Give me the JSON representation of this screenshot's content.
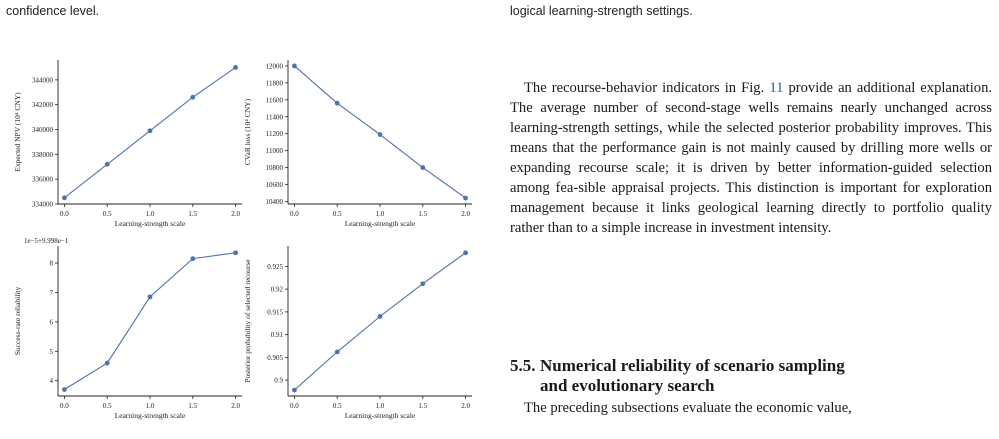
{
  "left_snippet": "confidence level.",
  "right_snippet": "logical learning-strength settings.",
  "paragraph": {
    "before_ref": "The recourse-behavior indicators in Fig.",
    "ref": "11",
    "after_ref": "provide an additional explanation. The average number of second-stage wells remains nearly unchanged across learning-strength settings, while the selected posterior probability improves. This means that the performance gain is not mainly caused by drilling more wells or expanding recourse scale; it is driven by better information-guided selection among fea-sible appraisal projects. This distinction is important for exploration management because it links geological learning directly to portfolio quality rather than to a simple increase in investment intensity."
  },
  "section": {
    "number": "5.5.",
    "title_line1": "Numerical reliability of scenario sampling",
    "title_line2": "and evolutionary search"
  },
  "next_line": "The preceding subsections evaluate the economic value,",
  "colors": {
    "line": "#4c72b0",
    "point": "#4c72b0",
    "text": "#222222"
  },
  "chart_data": [
    {
      "type": "line",
      "x": [
        0.0,
        0.5,
        1.0,
        1.5,
        2.0
      ],
      "values": [
        334500,
        337200,
        339900,
        342600,
        345000
      ],
      "xlabel": "Learning-strength scale",
      "ylabel": "Expected NPV (10⁴ CNY)",
      "xticks": [
        "0.0",
        "0.5",
        "1.0",
        "1.5",
        "2.0"
      ],
      "yticks": [
        334000,
        336000,
        338000,
        340000,
        342000,
        344000
      ],
      "ylim": [
        334000,
        345600
      ],
      "offset_label": ""
    },
    {
      "type": "line",
      "x": [
        0.0,
        0.5,
        1.0,
        1.5,
        2.0
      ],
      "values": [
        12000,
        11560,
        11190,
        10800,
        10440
      ],
      "xlabel": "Learning-strength scale",
      "ylabel": "CVaR loss (10⁴ CNY)",
      "xticks": [
        "0.0",
        "0.5",
        "1.0",
        "1.5",
        "2.0"
      ],
      "yticks": [
        10400,
        10600,
        10800,
        11000,
        11200,
        11400,
        11600,
        11800,
        12000
      ],
      "ylim": [
        10370,
        12070
      ],
      "offset_label": ""
    },
    {
      "type": "line",
      "x": [
        0.0,
        0.5,
        1.0,
        1.5,
        2.0
      ],
      "values": [
        3.7,
        4.6,
        6.85,
        8.15,
        8.35
      ],
      "xlabel": "Learning-strength scale",
      "ylabel": "Success-rate reliability",
      "xticks": [
        "0.0",
        "0.5",
        "1.0",
        "1.5",
        "2.0"
      ],
      "yticks": [
        4,
        5,
        6,
        7,
        8
      ],
      "ylim": [
        3.48,
        8.58
      ],
      "offset_label": "1e−5+9.998e−1"
    },
    {
      "type": "line",
      "x": [
        0.0,
        0.5,
        1.0,
        1.5,
        2.0
      ],
      "values": [
        0.8978,
        0.9062,
        0.914,
        0.9212,
        0.928
      ],
      "xlabel": "Learning-strength scale",
      "ylabel": "Posterior probability of selected recourse",
      "xticks": [
        "0.0",
        "0.5",
        "1.0",
        "1.5",
        "2.0"
      ],
      "yticks": [
        0.9,
        0.905,
        0.91,
        0.915,
        0.92,
        0.925
      ],
      "ylim": [
        0.8965,
        0.9295
      ],
      "offset_label": ""
    }
  ]
}
